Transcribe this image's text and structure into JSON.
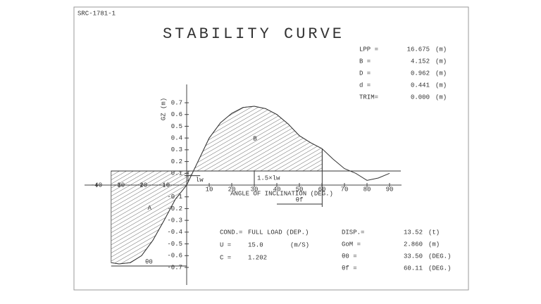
{
  "chart_data": {
    "type": "line",
    "doc_id": "SRC-1781-1",
    "title": "STABILITY CURVE",
    "y_label": "GZ (m)",
    "x_label": "ANGLE OF INCLINATION (DEG.)",
    "x": [
      -33.5,
      -30,
      -25,
      -20,
      -15,
      -10,
      -5,
      0,
      5,
      10,
      15,
      20,
      25,
      30,
      35,
      40,
      45,
      50,
      55,
      60,
      65,
      70,
      75,
      80,
      85,
      90
    ],
    "series": [
      {
        "color": "#333333",
        "values": [
          -0.66,
          -0.67,
          -0.66,
          -0.6,
          -0.47,
          -0.3,
          -0.12,
          0,
          0.2,
          0.4,
          0.53,
          0.61,
          0.66,
          0.67,
          0.65,
          0.6,
          0.52,
          0.42,
          0.36,
          0.31,
          0.22,
          0.14,
          0.1,
          0.04,
          0.06,
          0.1
        ]
      }
    ],
    "xlim": [
      -40,
      90
    ],
    "ylim": [
      -0.7,
      0.7
    ],
    "xticks": [
      -40,
      -30,
      -20,
      -10,
      10,
      20,
      30,
      40,
      50,
      60,
      70,
      80,
      90
    ],
    "yticks": [
      0.7,
      0.6,
      0.5,
      0.4,
      0.3,
      0.2,
      0.1,
      -0.1,
      -0.2,
      -0.3,
      -0.4,
      -0.5,
      -0.6,
      -0.7
    ],
    "heel_lines": [
      {
        "label": "lw",
        "value": 0.08,
        "xlim": [
          -1,
          6
        ]
      },
      {
        "label": "1.5×lw",
        "value": 0.12,
        "xlim": [
          -33.5,
          95
        ]
      }
    ],
    "areas": [
      {
        "label": "A",
        "xlim": [
          -33.5,
          0.6
        ],
        "angle_label": "θ0"
      },
      {
        "label": "B",
        "xlim": [
          0.6,
          60.11
        ],
        "angle_label": "θf"
      }
    ],
    "params": [
      {
        "label": "LPP =",
        "value": "16.675",
        "unit": "(m)"
      },
      {
        "label": "B =",
        "value": "4.152",
        "unit": "(m)"
      },
      {
        "label": "D =",
        "value": "0.962",
        "unit": "(m)"
      },
      {
        "label": "d =",
        "value": "0.441",
        "unit": "(m)"
      },
      {
        "label": "TRIM=",
        "value": "0.000",
        "unit": "(m)"
      }
    ],
    "conditions": [
      {
        "label": "COND.=",
        "value": "FULL LOAD (DEP.)",
        "unit": ""
      },
      {
        "label": "U =",
        "value": "15.0",
        "unit": "(m/S)"
      },
      {
        "label": "C =",
        "value": "1.202",
        "unit": ""
      }
    ],
    "results": [
      {
        "label": "DISP.=",
        "value": "13.52",
        "unit": "(t)"
      },
      {
        "label": "GoM =",
        "value": "2.860",
        "unit": "(m)"
      },
      {
        "label": "θ0 =",
        "value": "33.50",
        "unit": "(DEG.)"
      },
      {
        "label": "θf =",
        "value": "60.11",
        "unit": "(DEG.)"
      }
    ]
  }
}
